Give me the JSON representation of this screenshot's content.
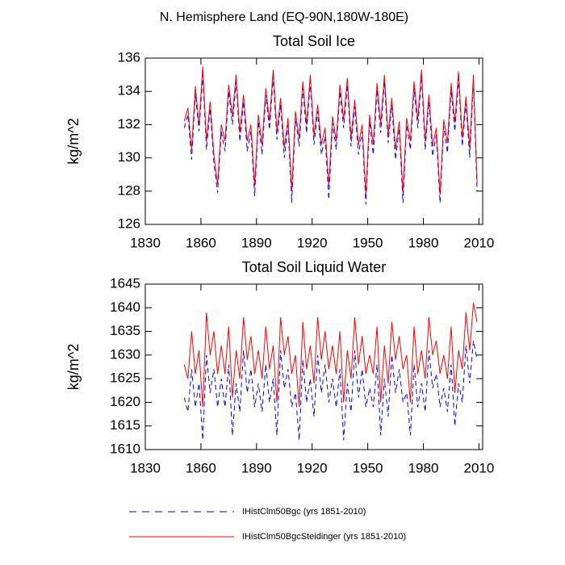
{
  "title": "N. Hemisphere Land (EQ-90N,180W-180E)",
  "chart_data": [
    {
      "type": "line",
      "title": "Total Soil Ice",
      "y_label": "kg/m^2",
      "x": [
        1851,
        1853,
        1855,
        1857,
        1859,
        1861,
        1863,
        1865,
        1867,
        1869,
        1871,
        1873,
        1875,
        1877,
        1879,
        1881,
        1883,
        1885,
        1887,
        1889,
        1891,
        1893,
        1895,
        1897,
        1899,
        1901,
        1903,
        1905,
        1907,
        1909,
        1911,
        1913,
        1915,
        1917,
        1919,
        1921,
        1923,
        1925,
        1927,
        1929,
        1931,
        1933,
        1935,
        1937,
        1939,
        1941,
        1943,
        1945,
        1947,
        1949,
        1951,
        1953,
        1955,
        1957,
        1959,
        1961,
        1963,
        1965,
        1967,
        1969,
        1971,
        1973,
        1975,
        1977,
        1979,
        1981,
        1983,
        1985,
        1987,
        1989,
        1991,
        1993,
        1995,
        1997,
        1999,
        2001,
        2003,
        2005,
        2007,
        2009
      ],
      "xlim": [
        1830,
        2012
      ],
      "xticks": [
        1830,
        1860,
        1890,
        1920,
        1950,
        1980,
        2010
      ],
      "ylim": [
        126,
        136
      ],
      "yticks": [
        126,
        128,
        130,
        132,
        134,
        136
      ],
      "series": [
        {
          "name": "IHistClm50Bgc (yrs 1851-2010)",
          "color": "#0000ff",
          "dash": true,
          "values": [
            131.8,
            132.6,
            129.9,
            133.9,
            131.6,
            135.0,
            130.5,
            133.0,
            129.7,
            127.9,
            131.6,
            130.4,
            134.0,
            132.0,
            134.6,
            131.0,
            133.4,
            130.4,
            131.6,
            127.7,
            132.2,
            130.2,
            133.8,
            131.7,
            134.9,
            131.1,
            133.2,
            130.0,
            132.0,
            127.3,
            132.4,
            130.7,
            134.2,
            131.5,
            134.6,
            130.8,
            132.8,
            130.2,
            131.3,
            127.5,
            132.1,
            130.5,
            134.0,
            131.8,
            134.4,
            130.7,
            133.1,
            130.2,
            131.6,
            127.2,
            132.2,
            130.2,
            134.1,
            131.5,
            134.6,
            130.9,
            133.2,
            129.9,
            131.8,
            127.3,
            132.0,
            130.5,
            134.2,
            131.8,
            134.9,
            130.5,
            133.4,
            130.1,
            131.4,
            127.3,
            131.9,
            130.3,
            134.1,
            131.6,
            134.8,
            130.7,
            133.3,
            130.0,
            134.6,
            128.0
          ]
        },
        {
          "name": "IHistClm50BgcSteidinger (yrs 1851-2010)",
          "color": "#ff0000",
          "dash": false,
          "values": [
            132.2,
            133.0,
            130.5,
            134.3,
            132.0,
            135.5,
            131.0,
            133.4,
            130.2,
            128.4,
            132.0,
            131.0,
            134.4,
            132.5,
            135.0,
            131.5,
            133.8,
            131.0,
            132.0,
            128.3,
            132.6,
            130.8,
            134.2,
            132.2,
            135.3,
            131.6,
            133.6,
            130.6,
            132.4,
            128.0,
            132.8,
            131.2,
            134.6,
            132.0,
            135.0,
            131.3,
            133.2,
            130.8,
            131.8,
            128.3,
            132.5,
            131.0,
            134.4,
            132.3,
            134.8,
            131.2,
            133.5,
            130.8,
            132.0,
            127.8,
            132.6,
            130.8,
            134.5,
            132.0,
            135.0,
            131.4,
            133.6,
            130.5,
            132.2,
            127.9,
            132.4,
            131.0,
            134.6,
            132.3,
            135.3,
            131.0,
            133.8,
            130.7,
            131.8,
            127.8,
            132.3,
            130.9,
            134.5,
            132.1,
            135.2,
            131.2,
            133.7,
            130.6,
            135.0,
            128.5
          ]
        }
      ]
    },
    {
      "type": "line",
      "title": "Total Soil Liquid Water",
      "y_label": "kg/m^2",
      "x": [
        1851,
        1853,
        1855,
        1857,
        1859,
        1861,
        1863,
        1865,
        1867,
        1869,
        1871,
        1873,
        1875,
        1877,
        1879,
        1881,
        1883,
        1885,
        1887,
        1889,
        1891,
        1893,
        1895,
        1897,
        1899,
        1901,
        1903,
        1905,
        1907,
        1909,
        1911,
        1913,
        1915,
        1917,
        1919,
        1921,
        1923,
        1925,
        1927,
        1929,
        1931,
        1933,
        1935,
        1937,
        1939,
        1941,
        1943,
        1945,
        1947,
        1949,
        1951,
        1953,
        1955,
        1957,
        1959,
        1961,
        1963,
        1965,
        1967,
        1969,
        1971,
        1973,
        1975,
        1977,
        1979,
        1981,
        1983,
        1985,
        1987,
        1989,
        1991,
        1993,
        1995,
        1997,
        1999,
        2001,
        2003,
        2005,
        2007,
        2009
      ],
      "xlim": [
        1830,
        2012
      ],
      "xticks": [
        1830,
        1860,
        1890,
        1920,
        1950,
        1980,
        2010
      ],
      "ylim": [
        1610,
        1645
      ],
      "yticks": [
        1610,
        1615,
        1620,
        1625,
        1630,
        1635,
        1640,
        1645
      ],
      "series": [
        {
          "color": "#0000ff",
          "dash": true,
          "values": [
            1621,
            1618,
            1627,
            1619,
            1624,
            1612,
            1630,
            1622,
            1627,
            1619,
            1625,
            1619,
            1628,
            1613,
            1624,
            1618,
            1631,
            1622,
            1627,
            1619,
            1624,
            1618,
            1628,
            1620,
            1625,
            1613,
            1631,
            1623,
            1627,
            1619,
            1622,
            1612,
            1629,
            1620,
            1625,
            1617,
            1630,
            1622,
            1628,
            1620,
            1625,
            1619,
            1627,
            1612,
            1624,
            1618,
            1631,
            1621,
            1627,
            1619,
            1623,
            1619,
            1628,
            1613,
            1625,
            1617,
            1630,
            1622,
            1627,
            1620,
            1622,
            1613,
            1628,
            1619,
            1624,
            1618,
            1631,
            1623,
            1626,
            1619,
            1623,
            1618,
            1628,
            1615,
            1624,
            1620,
            1632,
            1624,
            1633,
            1629
          ]
        },
        {
          "color": "#ff0000",
          "dash": false,
          "values": [
            1628,
            1625,
            1635,
            1626,
            1631,
            1619,
            1639,
            1630,
            1635,
            1626,
            1632,
            1626,
            1636,
            1621,
            1631,
            1625,
            1638,
            1629,
            1634,
            1626,
            1631,
            1625,
            1636,
            1627,
            1632,
            1620,
            1638,
            1630,
            1634,
            1626,
            1630,
            1619,
            1637,
            1627,
            1632,
            1624,
            1638,
            1629,
            1635,
            1627,
            1632,
            1626,
            1635,
            1620,
            1631,
            1625,
            1638,
            1628,
            1634,
            1626,
            1630,
            1626,
            1636,
            1620,
            1632,
            1624,
            1637,
            1629,
            1634,
            1627,
            1630,
            1620,
            1636,
            1626,
            1631,
            1625,
            1638,
            1630,
            1633,
            1626,
            1630,
            1625,
            1636,
            1622,
            1631,
            1627,
            1639,
            1631,
            1641,
            1637
          ]
        }
      ]
    }
  ]
}
